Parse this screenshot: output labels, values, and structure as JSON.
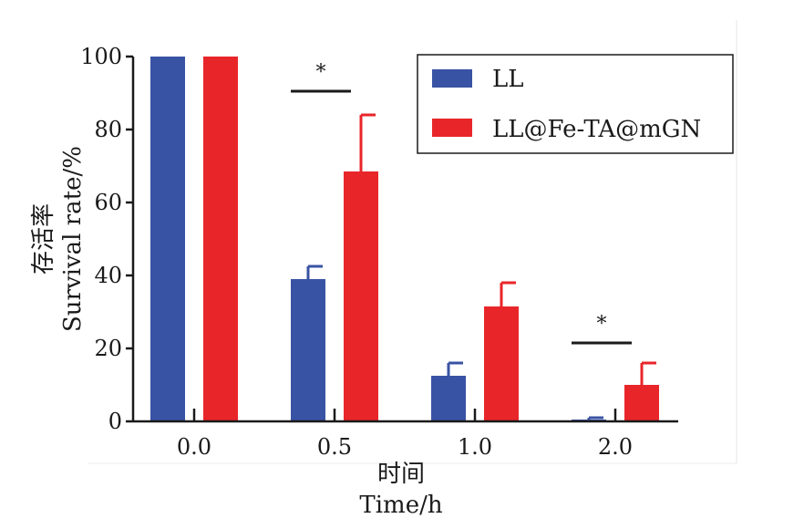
{
  "chart_data": {
    "type": "bar",
    "categories": [
      "0.0",
      "0.5",
      "1.0",
      "2.0"
    ],
    "series": [
      {
        "name": "LL",
        "color": "#3953a4",
        "values": [
          100,
          39,
          12.5,
          0.5
        ],
        "errors": [
          0,
          3.5,
          3.5,
          0.5
        ]
      },
      {
        "name": "LL@Fe-TA@mGN",
        "color": "#e8262a",
        "values": [
          100,
          68.5,
          31.5,
          10
        ],
        "errors": [
          0,
          15.5,
          6.5,
          6
        ]
      }
    ],
    "ylim": [
      0,
      100
    ],
    "yticks": [
      "0",
      "20",
      "40",
      "60",
      "80",
      "100"
    ],
    "ylabel_cn": "存活率",
    "ylabel_en": "Survival  rate/%",
    "xlabel_cn": "时间",
    "xlabel_en": "Time/h",
    "significance": [
      {
        "category": "0.5",
        "label": "*"
      },
      {
        "category": "2.0",
        "label": "*"
      }
    ],
    "legend_position": "top-right",
    "grid": false
  }
}
